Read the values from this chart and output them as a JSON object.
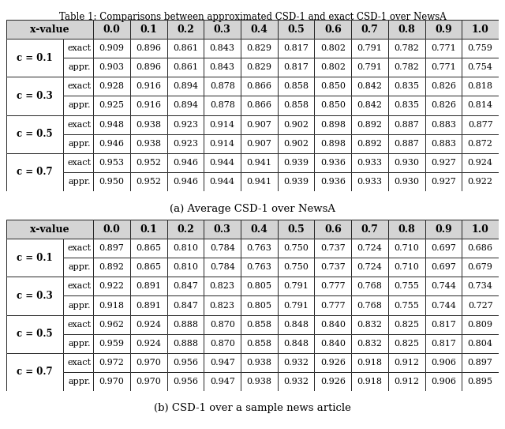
{
  "title": "Table 1: Comparisons between approximated CSD-1 and exact CSD-1 over NewsA",
  "caption_a": "(a) Average CSD-1 over NewsA",
  "caption_b": "(b) CSD-1 over a sample news article",
  "x_headers": [
    "0.0",
    "0.1",
    "0.2",
    "0.3",
    "0.4",
    "0.5",
    "0.6",
    "0.7",
    "0.8",
    "0.9",
    "1.0"
  ],
  "table_a": {
    "c01_exact": [
      0.909,
      0.896,
      0.861,
      0.843,
      0.829,
      0.817,
      0.802,
      0.791,
      0.782,
      0.771,
      0.759
    ],
    "c01_appr": [
      0.903,
      0.896,
      0.861,
      0.843,
      0.829,
      0.817,
      0.802,
      0.791,
      0.782,
      0.771,
      0.754
    ],
    "c03_exact": [
      0.928,
      0.916,
      0.894,
      0.878,
      0.866,
      0.858,
      0.85,
      0.842,
      0.835,
      0.826,
      0.818
    ],
    "c03_appr": [
      0.925,
      0.916,
      0.894,
      0.878,
      0.866,
      0.858,
      0.85,
      0.842,
      0.835,
      0.826,
      0.814
    ],
    "c05_exact": [
      0.948,
      0.938,
      0.923,
      0.914,
      0.907,
      0.902,
      0.898,
      0.892,
      0.887,
      0.883,
      0.877
    ],
    "c05_appr": [
      0.946,
      0.938,
      0.923,
      0.914,
      0.907,
      0.902,
      0.898,
      0.892,
      0.887,
      0.883,
      0.872
    ],
    "c07_exact": [
      0.953,
      0.952,
      0.946,
      0.944,
      0.941,
      0.939,
      0.936,
      0.933,
      0.93,
      0.927,
      0.924
    ],
    "c07_appr": [
      0.95,
      0.952,
      0.946,
      0.944,
      0.941,
      0.939,
      0.936,
      0.933,
      0.93,
      0.927,
      0.922
    ]
  },
  "table_b": {
    "c01_exact": [
      0.897,
      0.865,
      0.81,
      0.784,
      0.763,
      0.75,
      0.737,
      0.724,
      0.71,
      0.697,
      0.686
    ],
    "c01_appr": [
      0.892,
      0.865,
      0.81,
      0.784,
      0.763,
      0.75,
      0.737,
      0.724,
      0.71,
      0.697,
      0.679
    ],
    "c03_exact": [
      0.922,
      0.891,
      0.847,
      0.823,
      0.805,
      0.791,
      0.777,
      0.768,
      0.755,
      0.744,
      0.734
    ],
    "c03_appr": [
      0.918,
      0.891,
      0.847,
      0.823,
      0.805,
      0.791,
      0.777,
      0.768,
      0.755,
      0.744,
      0.727
    ],
    "c05_exact": [
      0.962,
      0.924,
      0.888,
      0.87,
      0.858,
      0.848,
      0.84,
      0.832,
      0.825,
      0.817,
      0.809
    ],
    "c05_appr": [
      0.959,
      0.924,
      0.888,
      0.87,
      0.858,
      0.848,
      0.84,
      0.832,
      0.825,
      0.817,
      0.804
    ],
    "c07_exact": [
      0.972,
      0.97,
      0.956,
      0.947,
      0.938,
      0.932,
      0.926,
      0.918,
      0.912,
      0.906,
      0.897
    ],
    "c07_appr": [
      0.97,
      0.97,
      0.956,
      0.947,
      0.938,
      0.932,
      0.926,
      0.918,
      0.912,
      0.906,
      0.895
    ]
  },
  "c_labels": [
    "c = 0.1",
    "c = 0.3",
    "c = 0.5",
    "c = 0.7"
  ],
  "row_labels": [
    "exact",
    "appr."
  ],
  "header_bg": "#d4d4d4",
  "cell_bg": "#ffffff",
  "title_fontsize": 8.5,
  "caption_fontsize": 9.5,
  "cell_fontsize": 8,
  "header_fontsize": 9,
  "clabel_fontsize": 8.5
}
